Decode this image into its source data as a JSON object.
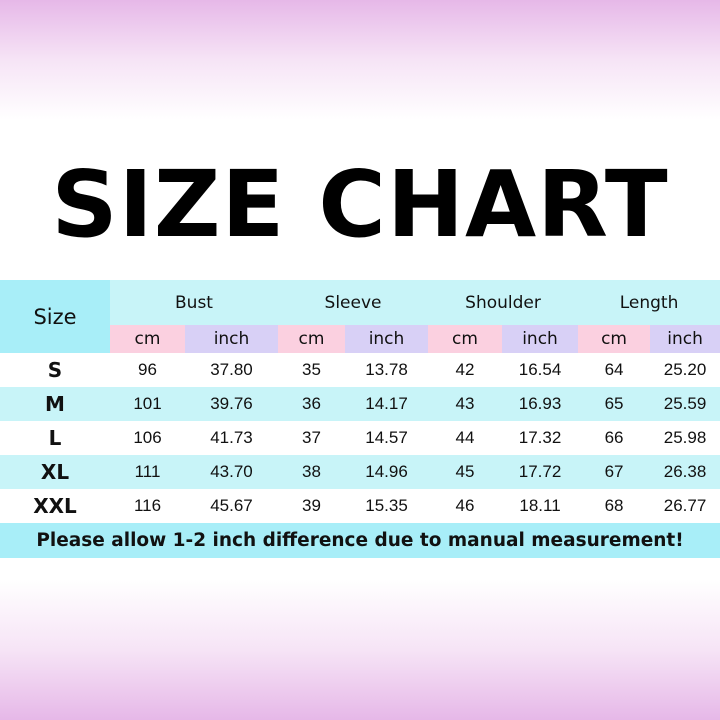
{
  "title": "SIZE CHART",
  "table": {
    "size_header": "Size",
    "groups": [
      "Bust",
      "Sleeve",
      "Shoulder",
      "Length"
    ],
    "units": [
      "cm",
      "inch"
    ],
    "rows": [
      {
        "size": "S",
        "values": [
          "96",
          "37.80",
          "35",
          "13.78",
          "42",
          "16.54",
          "64",
          "25.20"
        ]
      },
      {
        "size": "M",
        "values": [
          "101",
          "39.76",
          "36",
          "14.17",
          "43",
          "16.93",
          "65",
          "25.59"
        ]
      },
      {
        "size": "L",
        "values": [
          "106",
          "41.73",
          "37",
          "14.57",
          "44",
          "17.32",
          "66",
          "25.98"
        ]
      },
      {
        "size": "XL",
        "values": [
          "111",
          "43.70",
          "38",
          "14.96",
          "45",
          "17.72",
          "67",
          "26.38"
        ]
      },
      {
        "size": "XXL",
        "values": [
          "116",
          "45.67",
          "39",
          "15.35",
          "46",
          "18.11",
          "68",
          "26.77"
        ]
      }
    ],
    "note": "Please allow 1-2 inch difference due to manual measurement!"
  },
  "colors": {
    "size_cell": "#a8eef8",
    "header": "#c8f4f8",
    "cm": "#fbd0e0",
    "inch": "#d8d0f6"
  }
}
